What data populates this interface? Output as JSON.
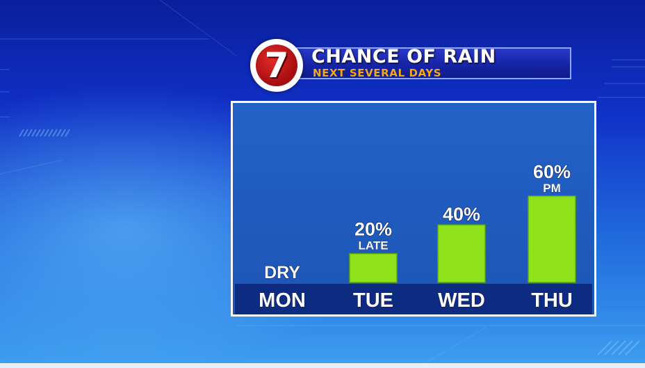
{
  "banner": {
    "logo_text": "7",
    "title": "CHANCE OF RAIN",
    "subtitle": "NEXT SEVERAL DAYS"
  },
  "colors": {
    "bar": "#8fe21a",
    "bar_edge": "#5fa80c",
    "accent_orange": "#f2a818",
    "day_bar": "#0e2b82"
  },
  "chart_data": {
    "type": "bar",
    "title": "CHANCE OF RAIN",
    "subtitle": "NEXT SEVERAL DAYS",
    "categories": [
      "MON",
      "TUE",
      "WED",
      "THU"
    ],
    "values": [
      0,
      20,
      40,
      60
    ],
    "value_labels": [
      "DRY",
      "20%",
      "40%",
      "60%"
    ],
    "notes": [
      "",
      "LATE",
      "",
      "PM"
    ],
    "ylim": [
      0,
      100
    ],
    "grid": false,
    "legend": "none"
  }
}
